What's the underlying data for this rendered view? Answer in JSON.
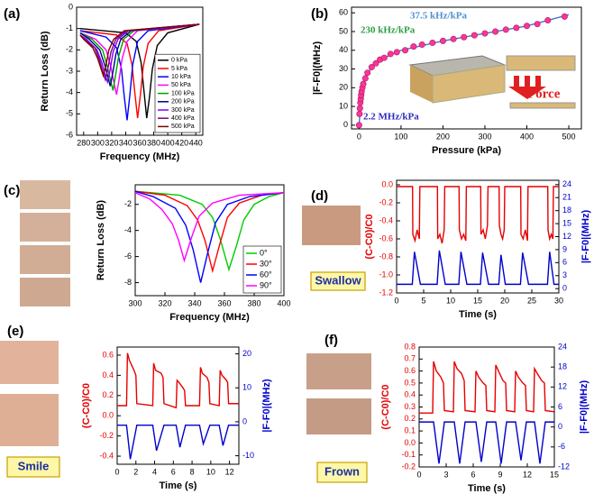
{
  "chart_data": [
    {
      "type": "line",
      "panel": "(a)",
      "xlabel": "Frequency (MHz)",
      "ylabel": "Return Loss (dB)",
      "xlim": [
        270,
        450
      ],
      "xticks": [
        280,
        300,
        320,
        340,
        360,
        380,
        400,
        420,
        440
      ],
      "ylim": [
        -6,
        0
      ],
      "yticks": [
        0,
        -1,
        -2,
        -3,
        -4,
        -5,
        -6
      ],
      "legend": "lower right",
      "series": [
        {
          "name": "0 kPa",
          "color": "#000000",
          "x": [
            275,
            340,
            355,
            362,
            366,
            370,
            374,
            378,
            385,
            400,
            445
          ],
          "values": [
            -1.0,
            -1.2,
            -1.6,
            -2.6,
            -3.9,
            -5.2,
            -4.2,
            -2.9,
            -1.8,
            -1.2,
            -0.8
          ]
        },
        {
          "name": "5 kPa",
          "color": "#ff0000",
          "x": [
            275,
            327,
            342,
            349,
            353,
            357,
            361,
            365,
            372,
            387,
            445
          ],
          "values": [
            -1.1,
            -1.3,
            -1.7,
            -2.7,
            -4.0,
            -5.2,
            -4.1,
            -2.8,
            -1.7,
            -1.1,
            -0.8
          ]
        },
        {
          "name": "10 kPa",
          "color": "#0000ff",
          "x": [
            275,
            312,
            327,
            334,
            338,
            342,
            346,
            350,
            357,
            372,
            445
          ],
          "values": [
            -1.1,
            -1.4,
            -1.9,
            -2.9,
            -4.2,
            -5.3,
            -4.1,
            -2.7,
            -1.6,
            -1.1,
            -0.8
          ]
        },
        {
          "name": "50 kPa",
          "color": "#ff00ff",
          "x": [
            275,
            297,
            312,
            319,
            323,
            327,
            331,
            335,
            342,
            357,
            445
          ],
          "values": [
            -1.2,
            -1.5,
            -2.0,
            -2.8,
            -3.5,
            -4.1,
            -3.3,
            -2.4,
            -1.6,
            -1.1,
            -0.8
          ]
        },
        {
          "name": "100 kPa",
          "color": "#00a000",
          "x": [
            275,
            292,
            307,
            314,
            318,
            322,
            326,
            330,
            337,
            352,
            445
          ],
          "values": [
            -1.2,
            -1.5,
            -2.0,
            -2.8,
            -3.4,
            -3.9,
            -3.1,
            -2.3,
            -1.5,
            -1.1,
            -0.8
          ]
        },
        {
          "name": "200 kPa",
          "color": "#000080",
          "x": [
            275,
            288,
            303,
            310,
            314,
            318,
            322,
            326,
            333,
            348,
            445
          ],
          "values": [
            -1.2,
            -1.5,
            -2.0,
            -2.7,
            -3.2,
            -3.7,
            -3.0,
            -2.2,
            -1.5,
            -1.1,
            -0.8
          ]
        },
        {
          "name": "300 kPa",
          "color": "#8000ff",
          "x": [
            275,
            284,
            299,
            306,
            310,
            314,
            318,
            322,
            329,
            344,
            445
          ],
          "values": [
            -1.3,
            -1.5,
            -2.0,
            -2.6,
            -3.1,
            -3.5,
            -2.9,
            -2.1,
            -1.5,
            -1.1,
            -0.8
          ]
        },
        {
          "name": "400 kPa",
          "color": "#800080",
          "x": [
            275,
            281,
            296,
            303,
            307,
            311,
            315,
            319,
            326,
            341,
            445
          ],
          "values": [
            -1.3,
            -1.5,
            -1.9,
            -2.5,
            -3.0,
            -3.4,
            -2.8,
            -2.1,
            -1.5,
            -1.1,
            -0.8
          ]
        },
        {
          "name": "500 kPa",
          "color": "#800000",
          "x": [
            275,
            280,
            293,
            300,
            304,
            308,
            312,
            316,
            323,
            338,
            445
          ],
          "values": [
            -1.3,
            -1.5,
            -1.9,
            -2.4,
            -2.8,
            -3.2,
            -2.7,
            -2.0,
            -1.5,
            -1.1,
            -0.8
          ]
        }
      ]
    },
    {
      "type": "scatter",
      "panel": "(b)",
      "xlabel": "Pressure (kPa)",
      "ylabel": "|F-F0|(MHz)",
      "xlim": [
        -18,
        530
      ],
      "xticks": [
        0,
        100,
        200,
        300,
        400,
        500
      ],
      "ylim": [
        -2,
        63
      ],
      "yticks": [
        0,
        10,
        20,
        30,
        40,
        50,
        60
      ],
      "annotations": [
        {
          "text": "230 kHz/kPa",
          "color": "#2e9e44"
        },
        {
          "text": "37.5 kHz/kPa",
          "color": "#4f8fcf"
        },
        {
          "text": "2.2 MHz/kPa",
          "color": "#2b2bbf"
        },
        {
          "text": "Force",
          "color": "#e02020"
        }
      ],
      "series": [
        {
          "type": "line",
          "color": "#4477cc",
          "x": [
            0,
            5,
            10,
            20,
            50,
            100,
            200,
            300,
            400,
            500
          ],
          "values": [
            0,
            16,
            22,
            28,
            35,
            40,
            45,
            49,
            53,
            59
          ]
        },
        {
          "type": "scatter",
          "color": "#ff3399",
          "x": [
            0,
            1,
            2,
            3,
            4,
            5,
            6,
            8,
            10,
            15,
            20,
            30,
            40,
            50,
            60,
            75,
            90,
            110,
            130,
            150,
            175,
            200,
            225,
            250,
            275,
            300,
            325,
            350,
            375,
            400,
            425,
            450,
            490
          ],
          "values": [
            0,
            6,
            9,
            12,
            14,
            16,
            18,
            20,
            22,
            25,
            28,
            31,
            33,
            35,
            36,
            38,
            39,
            40,
            42,
            43,
            44,
            45,
            46,
            47,
            48,
            49,
            50,
            51,
            52,
            53,
            54,
            56,
            58
          ]
        }
      ]
    },
    {
      "type": "line",
      "panel": "(c)",
      "xlabel": "Frequency (MHz)",
      "ylabel": "Return Loss (dB)",
      "xlim": [
        300,
        400
      ],
      "xticks": [
        300,
        320,
        340,
        360,
        380,
        400
      ],
      "ylim": [
        -9,
        -0.5
      ],
      "yticks": [
        -2,
        -4,
        -6,
        -8
      ],
      "legend": "lower right",
      "series": [
        {
          "name": "0°",
          "color": "#00cc00",
          "x": [
            300,
            330,
            345,
            352,
            357,
            363,
            368,
            373,
            380,
            390,
            400
          ],
          "values": [
            -1.0,
            -1.3,
            -2.0,
            -3.0,
            -4.6,
            -7.0,
            -5.2,
            -3.2,
            -2.0,
            -1.4,
            -1.1
          ]
        },
        {
          "name": "30°",
          "color": "#ff0000",
          "x": [
            300,
            320,
            335,
            342,
            347,
            352,
            357,
            362,
            370,
            385,
            400
          ],
          "values": [
            -1.0,
            -1.3,
            -2.1,
            -3.2,
            -4.8,
            -7.1,
            -5.0,
            -3.0,
            -1.9,
            -1.3,
            -1.1
          ]
        },
        {
          "name": "60°",
          "color": "#0000ff",
          "x": [
            300,
            312,
            327,
            334,
            339,
            344,
            349,
            354,
            362,
            377,
            400
          ],
          "values": [
            -1.0,
            -1.4,
            -2.3,
            -3.6,
            -5.5,
            -8.0,
            -5.6,
            -3.4,
            -2.0,
            -1.4,
            -1.1
          ]
        },
        {
          "name": "90°",
          "color": "#ff00ff",
          "x": [
            300,
            310,
            318,
            325,
            329,
            333,
            338,
            343,
            352,
            370,
            400
          ],
          "values": [
            -1.1,
            -1.6,
            -2.4,
            -3.5,
            -4.7,
            -6.3,
            -4.5,
            -2.9,
            -1.9,
            -1.3,
            -1.1
          ]
        }
      ]
    },
    {
      "type": "line",
      "panel": "(d)",
      "caption": "Swallow",
      "xlabel": "Time (s)",
      "ylabel": "(C-C0)/C0",
      "y2label": "|F-F0|(MHz)",
      "ylabel_color": "#e60000",
      "y2label_color": "#0000cc",
      "xlim": [
        0,
        30
      ],
      "xticks": [
        0,
        5,
        10,
        15,
        20,
        25,
        30
      ],
      "ylim": [
        -1.2,
        0.05
      ],
      "yticks": [
        -1.2,
        {
          "value": -1,
          "label": "-1.0"
        },
        -0.8,
        -0.6,
        -0.4,
        -0.2,
        {
          "value": 0,
          "label": "0.0"
        }
      ],
      "y2lim": [
        -1,
        25
      ],
      "y2ticks": [
        0,
        3,
        6,
        9,
        12,
        15,
        18,
        21,
        24
      ],
      "series": [
        {
          "color": "#e60000",
          "x": [
            0,
            2.95,
            3.0,
            3.4,
            3.8,
            4.2,
            4.3,
            7.55,
            7.6,
            8.0,
            8.4,
            8.8,
            8.9,
            11.55,
            11.6,
            12.0,
            12.4,
            12.8,
            12.9,
            15.55,
            15.6,
            16.0,
            16.4,
            16.8,
            16.9,
            18.95,
            19.0,
            19.3,
            19.6,
            19.9,
            20.0,
            22.95,
            23.0,
            23.4,
            23.8,
            24.2,
            24.3,
            27.95,
            28.0,
            28.3,
            28.6,
            28.9,
            29.0,
            30
          ],
          "values": [
            -0.02,
            -0.02,
            -0.55,
            -0.62,
            -0.5,
            -0.6,
            -0.02,
            -0.02,
            -0.6,
            -0.55,
            -0.65,
            -0.5,
            -0.02,
            -0.02,
            -0.5,
            -0.6,
            -0.55,
            -0.62,
            -0.02,
            -0.02,
            -0.55,
            -0.5,
            -0.6,
            -0.45,
            -0.02,
            -0.02,
            -0.45,
            -0.55,
            -0.6,
            -0.5,
            -0.02,
            -0.02,
            -0.55,
            -0.6,
            -0.5,
            -0.62,
            -0.02,
            -0.02,
            -0.5,
            -0.6,
            -0.55,
            -0.6,
            -0.02,
            -0.02
          ]
        },
        {
          "color": "#0000cc",
          "axis": "y2",
          "x": [
            0,
            2.9,
            3.3,
            4.4,
            7.5,
            7.9,
            9.0,
            11.5,
            11.9,
            13.0,
            15.5,
            15.9,
            17.0,
            18.9,
            19.3,
            20.1,
            22.9,
            23.3,
            24.4,
            27.9,
            28.3,
            29.1,
            30
          ],
          "values": [
            1,
            1,
            8.5,
            1,
            1,
            8.8,
            1,
            1,
            8.5,
            1,
            1,
            8.3,
            1,
            1,
            7.8,
            1,
            1,
            8.3,
            1,
            1,
            8.5,
            1,
            1
          ]
        }
      ]
    },
    {
      "type": "line",
      "panel": "(e)",
      "caption": "Smile",
      "xlabel": "Time (s)",
      "ylabel": "(C-C0)/C0",
      "y2label": "|F-F0|(MHz)",
      "ylabel_color": "#e60000",
      "y2label_color": "#0000cc",
      "xlim": [
        0,
        13
      ],
      "xticks": [
        0,
        2,
        4,
        6,
        8,
        10,
        12
      ],
      "ylim": [
        -0.48,
        0.68
      ],
      "yticks": [
        -0.4,
        -0.2,
        {
          "value": 0,
          "label": "0.0"
        },
        0.2,
        0.4,
        0.6
      ],
      "y2lim": [
        -12.5,
        22
      ],
      "y2ticks": [
        -10,
        0,
        10,
        20
      ],
      "series": [
        {
          "color": "#e60000",
          "x": [
            0,
            1.0,
            1.1,
            1.3,
            1.8,
            2.0,
            2.1,
            3.8,
            3.9,
            4.1,
            4.7,
            4.9,
            5.0,
            6.3,
            6.4,
            6.6,
            7.0,
            7.2,
            7.3,
            8.8,
            8.9,
            9.1,
            9.6,
            9.8,
            9.9,
            10.9,
            11.0,
            11.2,
            11.6,
            11.8,
            11.9,
            13
          ],
          "values": [
            0.1,
            0.1,
            0.62,
            0.55,
            0.45,
            0.4,
            0.12,
            0.1,
            0.52,
            0.45,
            0.42,
            0.38,
            0.12,
            0.08,
            0.35,
            0.33,
            0.28,
            0.25,
            0.1,
            0.1,
            0.48,
            0.42,
            0.38,
            0.33,
            0.12,
            0.1,
            0.45,
            0.4,
            0.36,
            0.33,
            0.12,
            0.12
          ]
        },
        {
          "color": "#0000cc",
          "axis": "y2",
          "x": [
            0,
            1.0,
            1.4,
            2.1,
            3.8,
            4.2,
            5.0,
            6.3,
            6.7,
            7.3,
            8.8,
            9.2,
            9.9,
            10.9,
            11.3,
            11.9,
            13
          ],
          "values": [
            -1,
            -1,
            -11,
            -1,
            -1,
            -8.5,
            -1,
            -1,
            -7.5,
            -1,
            -1,
            -6.5,
            -1,
            -1,
            -7,
            -1,
            -1
          ]
        }
      ]
    },
    {
      "type": "line",
      "panel": "(f)",
      "caption": "Frown",
      "xlabel": "Time (s)",
      "ylabel": "(C-C0)/C0",
      "y2label": "|F-F0|(MHz)",
      "ylabel_color": "#e60000",
      "y2label_color": "#0000cc",
      "xlim": [
        0,
        15
      ],
      "xticks": [
        0,
        3,
        6,
        9,
        12,
        15
      ],
      "ylim": [
        -0.2,
        0.8
      ],
      "yticks": [
        -0.2,
        -0.1,
        {
          "value": 0,
          "label": "0.0"
        },
        0.1,
        0.2,
        0.3,
        0.4,
        0.5,
        0.6,
        0.7,
        0.8
      ],
      "y2lim": [
        -12,
        24
      ],
      "y2ticks": [
        -12,
        -6,
        0,
        6,
        12,
        18,
        24
      ],
      "series": [
        {
          "color": "#e60000",
          "x": [
            0,
            1.5,
            1.6,
            1.9,
            2.4,
            2.7,
            2.8,
            3.8,
            3.9,
            4.2,
            4.7,
            5.0,
            5.1,
            6.2,
            6.3,
            6.6,
            7.1,
            7.4,
            7.5,
            8.4,
            8.5,
            8.8,
            9.3,
            9.6,
            9.7,
            10.6,
            10.7,
            11.0,
            11.5,
            11.8,
            11.9,
            12.7,
            12.8,
            13.1,
            13.6,
            13.9,
            14.0,
            15
          ],
          "values": [
            0.25,
            0.25,
            0.68,
            0.6,
            0.55,
            0.5,
            0.27,
            0.26,
            0.68,
            0.62,
            0.58,
            0.52,
            0.27,
            0.26,
            0.6,
            0.55,
            0.5,
            0.48,
            0.27,
            0.26,
            0.65,
            0.6,
            0.52,
            0.5,
            0.27,
            0.26,
            0.6,
            0.55,
            0.5,
            0.48,
            0.27,
            0.26,
            0.62,
            0.58,
            0.52,
            0.5,
            0.27,
            0.26
          ]
        },
        {
          "color": "#0000cc",
          "axis": "y2",
          "x": [
            0,
            1.6,
            2.2,
            2.8,
            3.9,
            4.5,
            5.1,
            6.3,
            6.9,
            7.5,
            8.5,
            9.1,
            9.7,
            10.7,
            11.3,
            11.9,
            12.8,
            13.4,
            14.0,
            15
          ],
          "values": [
            1.5,
            1.5,
            -11,
            1.5,
            1.5,
            -11,
            1.5,
            1.5,
            -10.5,
            1.5,
            1.5,
            -11,
            1.5,
            1.5,
            -10,
            1.5,
            1.5,
            -11,
            1.5,
            1.5
          ]
        }
      ]
    }
  ]
}
